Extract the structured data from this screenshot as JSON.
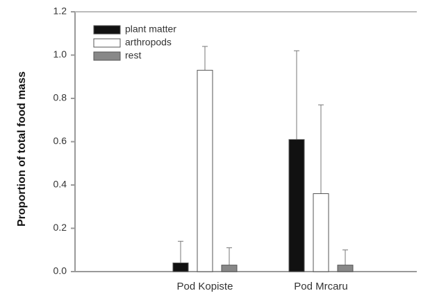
{
  "chart_data": {
    "type": "bar",
    "y_label": "Proportion of total food mass",
    "categories": [
      "Pod Kopiste",
      "Pod Mrcaru"
    ],
    "series": [
      {
        "name": "plant matter",
        "color": "#111111",
        "values": [
          0.04,
          0.61
        ],
        "errors": [
          0.1,
          0.41
        ]
      },
      {
        "name": "arthropods",
        "color": "#ffffff",
        "values": [
          0.93,
          0.36
        ],
        "errors": [
          0.11,
          0.41
        ]
      },
      {
        "name": "rest",
        "color": "#888888",
        "values": [
          0.03,
          0.03
        ],
        "errors": [
          0.08,
          0.07
        ]
      }
    ],
    "ylim": [
      0,
      1.2
    ],
    "yticks": [
      {
        "value": 0,
        "label": "0.0"
      },
      0.2,
      0.4,
      0.6,
      0.8,
      {
        "value": 1,
        "label": "1.0"
      },
      1.2
    ],
    "legend": "upper-left"
  }
}
